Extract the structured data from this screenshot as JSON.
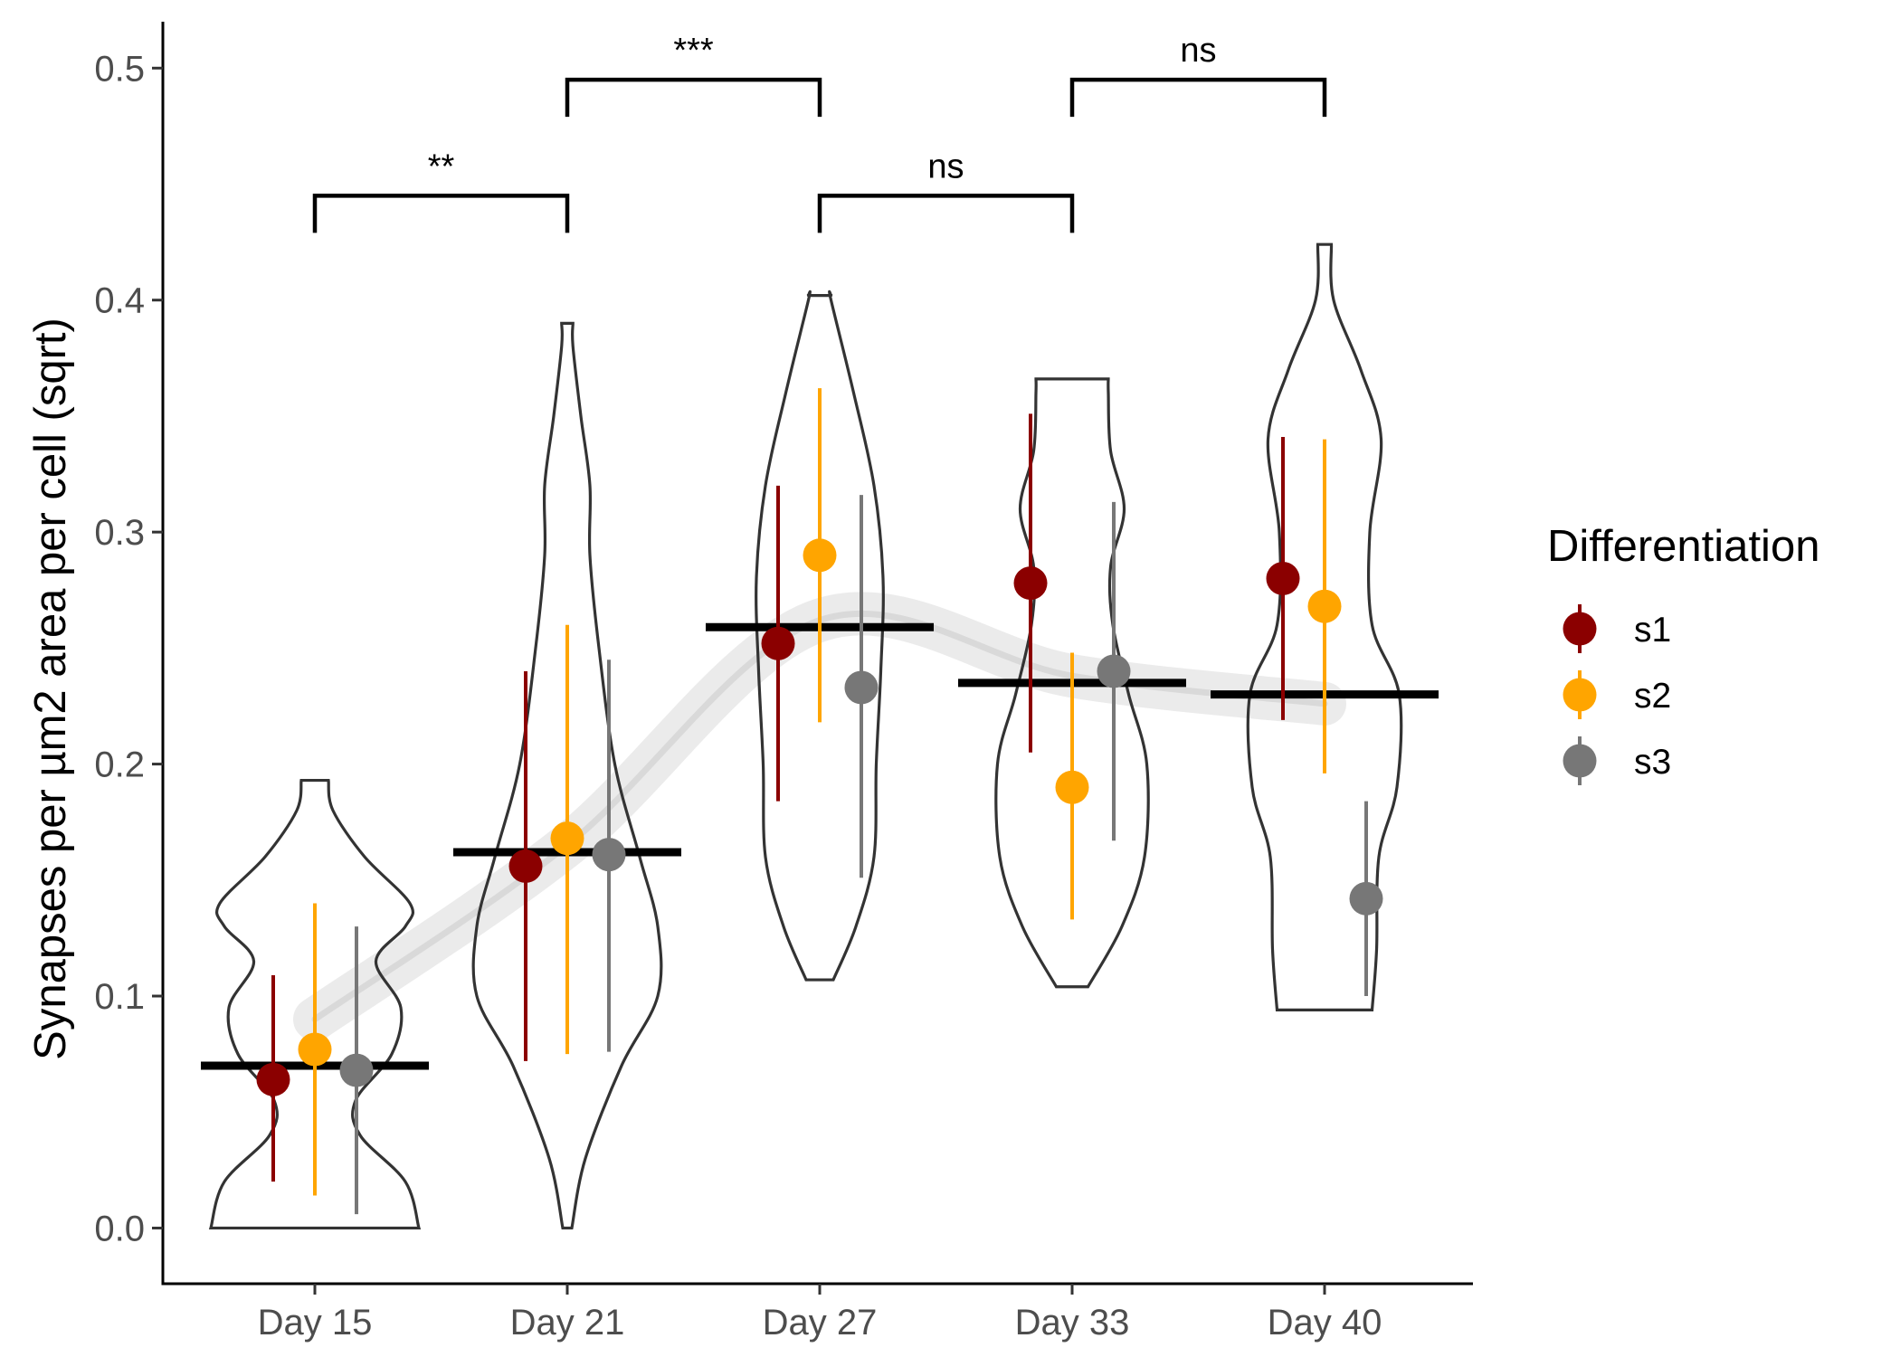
{
  "chart_data": {
    "type": "violin",
    "ylabel": "Synapses per µm2 area per cell (sqrt)",
    "xlabel": "",
    "ylim": [
      -0.024,
      0.52
    ],
    "yticks": [
      0.0,
      0.1,
      0.2,
      0.3,
      0.4,
      0.5
    ],
    "ytick_labels": [
      "0.0",
      "0.1",
      "0.2",
      "0.3",
      "0.4",
      "0.5"
    ],
    "categories": [
      "Day 15",
      "Day 21",
      "Day 27",
      "Day 33",
      "Day 40"
    ],
    "group_means": [
      0.07,
      0.162,
      0.259,
      0.235,
      0.23
    ],
    "trend_line": {
      "x_range": [
        "Day 15",
        "Day 40"
      ],
      "note_points": [
        [
          0,
          0.09
        ],
        [
          1,
          0.165
        ],
        [
          2,
          0.262
        ],
        [
          3,
          0.238
        ],
        [
          4,
          0.226
        ]
      ]
    },
    "violins": [
      {
        "category": "Day 15",
        "min": 0.0,
        "max": 0.193,
        "profile": [
          [
            0.0,
            0.46
          ],
          [
            0.02,
            0.4
          ],
          [
            0.04,
            0.2
          ],
          [
            0.055,
            0.18
          ],
          [
            0.075,
            0.34
          ],
          [
            0.095,
            0.38
          ],
          [
            0.115,
            0.27
          ],
          [
            0.13,
            0.4
          ],
          [
            0.14,
            0.42
          ],
          [
            0.16,
            0.22
          ],
          [
            0.18,
            0.08
          ],
          [
            0.193,
            0.06
          ]
        ]
      },
      {
        "category": "Day 21",
        "min": 0.0,
        "max": 0.39,
        "profile": [
          [
            0.0,
            0.02
          ],
          [
            0.03,
            0.08
          ],
          [
            0.07,
            0.24
          ],
          [
            0.1,
            0.4
          ],
          [
            0.13,
            0.4
          ],
          [
            0.16,
            0.32
          ],
          [
            0.2,
            0.21
          ],
          [
            0.25,
            0.14
          ],
          [
            0.29,
            0.1
          ],
          [
            0.32,
            0.1
          ],
          [
            0.35,
            0.06
          ],
          [
            0.38,
            0.025
          ],
          [
            0.39,
            0.025
          ]
        ]
      },
      {
        "category": "Day 27",
        "min": 0.107,
        "max": 0.402,
        "profile": [
          [
            0.107,
            0.06
          ],
          [
            0.13,
            0.16
          ],
          [
            0.16,
            0.24
          ],
          [
            0.2,
            0.25
          ],
          [
            0.24,
            0.27
          ],
          [
            0.28,
            0.28
          ],
          [
            0.32,
            0.24
          ],
          [
            0.36,
            0.15
          ],
          [
            0.4,
            0.05
          ],
          [
            0.402,
            0.05
          ]
        ]
      },
      {
        "category": "Day 33",
        "min": 0.104,
        "max": 0.366,
        "profile": [
          [
            0.104,
            0.07
          ],
          [
            0.13,
            0.22
          ],
          [
            0.16,
            0.32
          ],
          [
            0.2,
            0.33
          ],
          [
            0.23,
            0.25
          ],
          [
            0.26,
            0.18
          ],
          [
            0.285,
            0.17
          ],
          [
            0.31,
            0.23
          ],
          [
            0.335,
            0.17
          ],
          [
            0.36,
            0.16
          ],
          [
            0.366,
            0.16
          ]
        ]
      },
      {
        "category": "Day 40",
        "min": 0.094,
        "max": 0.424,
        "profile": [
          [
            0.094,
            0.21
          ],
          [
            0.12,
            0.23
          ],
          [
            0.16,
            0.24
          ],
          [
            0.19,
            0.32
          ],
          [
            0.23,
            0.33
          ],
          [
            0.26,
            0.21
          ],
          [
            0.3,
            0.2
          ],
          [
            0.34,
            0.25
          ],
          [
            0.37,
            0.16
          ],
          [
            0.4,
            0.04
          ],
          [
            0.424,
            0.03
          ]
        ]
      }
    ],
    "series": [
      {
        "name": "s1",
        "color": "#8b0000",
        "offset": -1,
        "points": [
          {
            "category": "Day 15",
            "y": 0.064,
            "lo": 0.02,
            "hi": 0.109
          },
          {
            "category": "Day 21",
            "y": 0.156,
            "lo": 0.072,
            "hi": 0.24
          },
          {
            "category": "Day 27",
            "y": 0.252,
            "lo": 0.184,
            "hi": 0.32
          },
          {
            "category": "Day 33",
            "y": 0.278,
            "lo": 0.205,
            "hi": 0.351
          },
          {
            "category": "Day 40",
            "y": 0.28,
            "lo": 0.219,
            "hi": 0.341
          }
        ]
      },
      {
        "name": "s2",
        "color": "#ffa500",
        "offset": 0,
        "points": [
          {
            "category": "Day 15",
            "y": 0.077,
            "lo": 0.014,
            "hi": 0.14
          },
          {
            "category": "Day 21",
            "y": 0.168,
            "lo": 0.075,
            "hi": 0.26
          },
          {
            "category": "Day 27",
            "y": 0.29,
            "lo": 0.218,
            "hi": 0.362
          },
          {
            "category": "Day 33",
            "y": 0.19,
            "lo": 0.133,
            "hi": 0.248
          },
          {
            "category": "Day 40",
            "y": 0.268,
            "lo": 0.196,
            "hi": 0.34
          }
        ]
      },
      {
        "name": "s3",
        "color": "#777777",
        "offset": 1,
        "points": [
          {
            "category": "Day 15",
            "y": 0.068,
            "lo": 0.006,
            "hi": 0.13
          },
          {
            "category": "Day 21",
            "y": 0.161,
            "lo": 0.076,
            "hi": 0.245
          },
          {
            "category": "Day 27",
            "y": 0.233,
            "lo": 0.151,
            "hi": 0.316
          },
          {
            "category": "Day 33",
            "y": 0.24,
            "lo": 0.167,
            "hi": 0.313
          },
          {
            "category": "Day 40",
            "y": 0.142,
            "lo": 0.1,
            "hi": 0.184
          }
        ]
      }
    ],
    "comparisons": [
      {
        "from": "Day 15",
        "to": "Day 21",
        "y": 0.445,
        "label": "**"
      },
      {
        "from": "Day 21",
        "to": "Day 27",
        "y": 0.495,
        "label": "***"
      },
      {
        "from": "Day 27",
        "to": "Day 33",
        "y": 0.445,
        "label": "ns"
      },
      {
        "from": "Day 33",
        "to": "Day 40",
        "y": 0.495,
        "label": "ns"
      }
    ],
    "legend": {
      "title": "Differentiation",
      "position": "right",
      "items": [
        "s1",
        "s2",
        "s3"
      ]
    },
    "grid": false
  }
}
